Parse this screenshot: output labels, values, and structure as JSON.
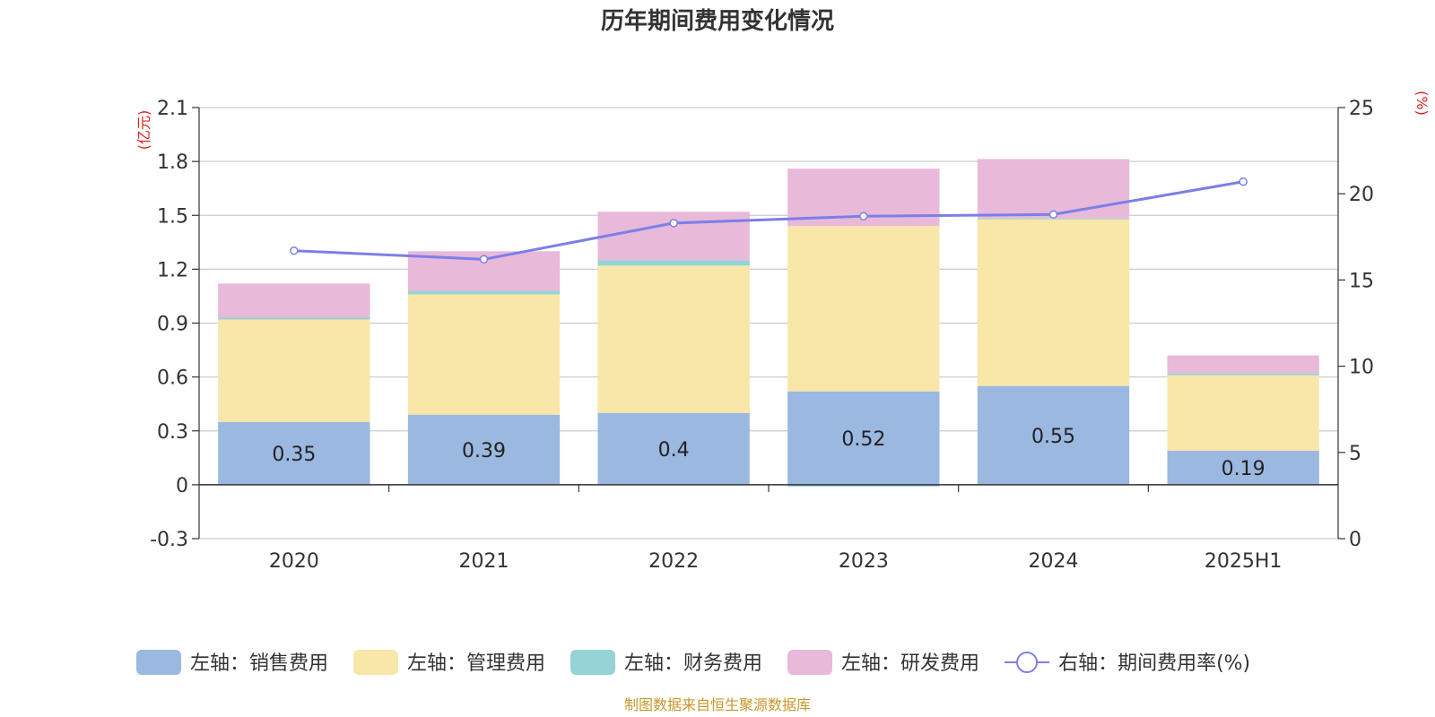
{
  "chart_data": {
    "type": "bar",
    "title": "历年期间费用变化情况",
    "categories": [
      "2020",
      "2021",
      "2022",
      "2023",
      "2024",
      "2025H1"
    ],
    "left_axis": {
      "unit": "(亿元)",
      "ylim": [
        -0.3,
        2.1
      ],
      "ticks": [
        "2.1",
        "1.8",
        "1.5",
        "1.2",
        "0.9",
        "0.6",
        "0.3",
        "0",
        "-0.3"
      ],
      "tick_values": [
        2.1,
        1.8,
        1.5,
        1.2,
        0.9,
        0.6,
        0.3,
        0,
        -0.3
      ]
    },
    "right_axis": {
      "unit": "(%)",
      "ylim": [
        0,
        25
      ],
      "ticks": [
        "25",
        "20",
        "15",
        "10",
        "5",
        "0"
      ],
      "tick_values": [
        25,
        20,
        15,
        10,
        5,
        0
      ]
    },
    "stacked": true,
    "series": [
      {
        "name": "左轴：销售费用",
        "axis": "left",
        "color": "#9bb8e0",
        "values": [
          0.35,
          0.39,
          0.4,
          0.52,
          0.55,
          0.19
        ],
        "labels": [
          "0.35",
          "0.39",
          "0.4",
          "0.52",
          "0.55",
          "0.19"
        ]
      },
      {
        "name": "左轴：管理费用",
        "axis": "left",
        "color": "#f8e7a8",
        "values": [
          0.57,
          0.67,
          0.82,
          0.92,
          0.93,
          0.42
        ]
      },
      {
        "name": "左轴：财务费用",
        "axis": "left",
        "color": "#96d3d6",
        "values": [
          0.01,
          0.02,
          0.03,
          -0.01,
          0.003,
          0.01
        ]
      },
      {
        "name": "左轴：研发费用",
        "axis": "left",
        "color": "#e8b9d9",
        "values": [
          0.19,
          0.22,
          0.27,
          0.32,
          0.33,
          0.1
        ]
      },
      {
        "name": "右轴：期间费用率(%)",
        "axis": "right",
        "type": "line",
        "color": "#7b7fe8",
        "values": [
          16.7,
          16.2,
          18.3,
          18.7,
          18.8,
          20.7
        ]
      }
    ],
    "grid": true,
    "legend_position": "bottom",
    "source": "制图数据来自恒生聚源数据库"
  }
}
